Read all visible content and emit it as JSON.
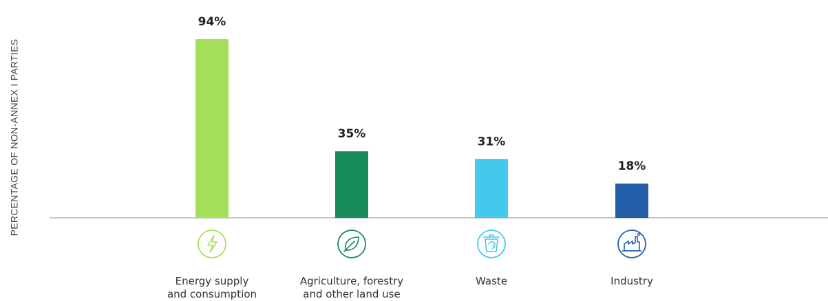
{
  "chart_data": {
    "type": "bar",
    "ylabel": "PERCENTAGE OF NON-ANNEX I PARTIES",
    "ylim": [
      0,
      100
    ],
    "grid": false,
    "categories": [
      [
        "Energy supply",
        "and consumption"
      ],
      [
        "Agriculture, forestry",
        "and other land use"
      ],
      [
        "Waste"
      ],
      [
        "Industry"
      ]
    ],
    "values": [
      94,
      35,
      31,
      18
    ],
    "value_labels": [
      "94%",
      "35%",
      "31%",
      "18%"
    ],
    "colors": [
      "#a5e05a",
      "#178b5b",
      "#44c8ee",
      "#235ea8"
    ],
    "icons": [
      "lightning-icon",
      "leaf-icon",
      "recycle-bin-icon",
      "factory-icon"
    ]
  }
}
